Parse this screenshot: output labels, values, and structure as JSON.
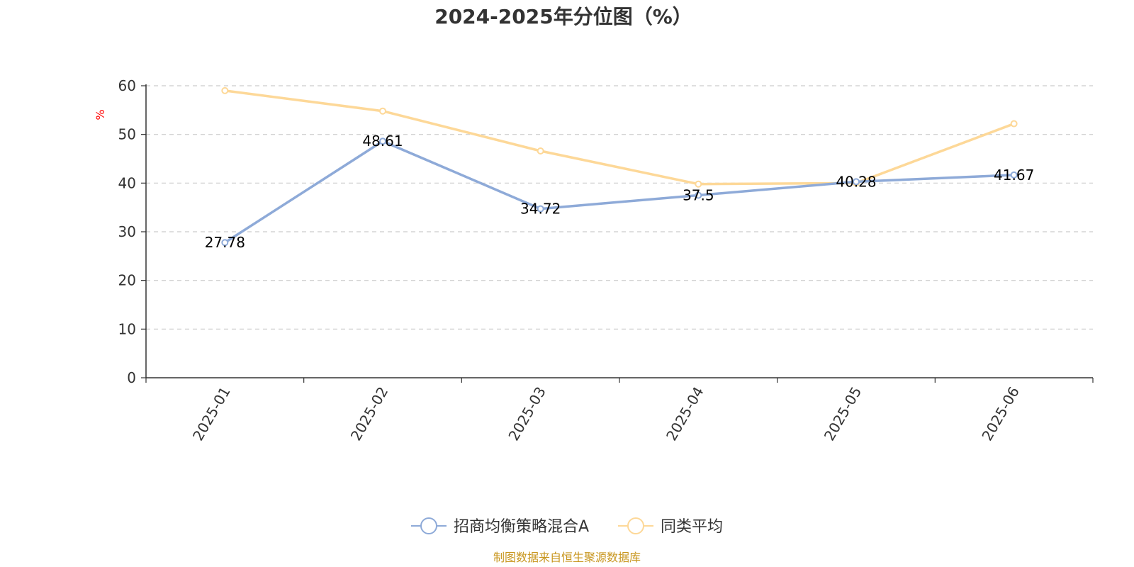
{
  "chart_data": {
    "type": "line",
    "title": "2024-2025年分位图（%）",
    "ylabel": "%",
    "categories": [
      "2025-01",
      "2025-02",
      "2025-03",
      "2025-04",
      "2025-05",
      "2025-06"
    ],
    "ylim": [
      0,
      60
    ],
    "yticks": [
      0,
      10,
      20,
      30,
      40,
      50,
      60
    ],
    "grid": true,
    "legend_position": "bottom-center",
    "series": [
      {
        "name": "招商均衡策略混合A",
        "values": [
          27.78,
          48.61,
          34.72,
          37.5,
          40.28,
          41.67
        ],
        "labels": [
          "27.78",
          "48.61",
          "34.72",
          "37.5",
          "40.28",
          "41.67"
        ],
        "color": "#8eaad8"
      },
      {
        "name": "同类平均",
        "values": [
          59.0,
          54.8,
          46.6,
          39.8,
          40.0,
          52.2
        ],
        "color": "#fdd898"
      }
    ]
  },
  "source_text": "制图数据来自恒生聚源数据库",
  "source_color": "#c8961e"
}
